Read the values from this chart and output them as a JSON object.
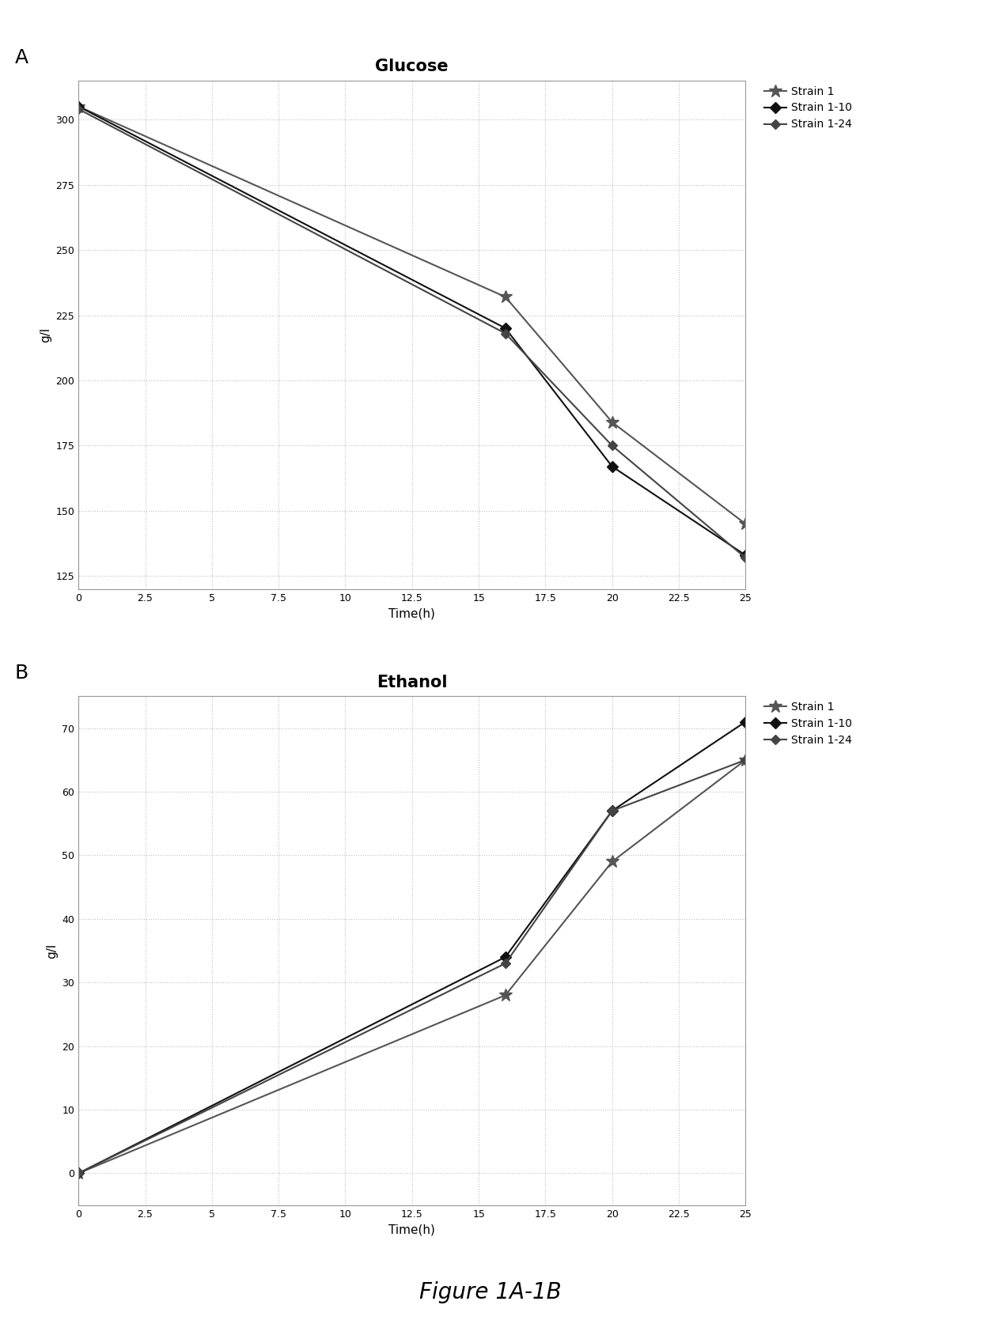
{
  "glucose": {
    "title": "Glucose",
    "xlabel": "Time(h)",
    "ylabel": "g/l",
    "xlim": [
      0,
      25
    ],
    "ylim": [
      120,
      315
    ],
    "yticks": [
      125,
      150,
      175,
      200,
      225,
      250,
      275,
      300
    ],
    "xticks": [
      0,
      2.5,
      5,
      7.5,
      10,
      12.5,
      15,
      17.5,
      20,
      22.5,
      25
    ],
    "series": [
      {
        "label": "Strain 1",
        "x": [
          0,
          16,
          20,
          25
        ],
        "y": [
          305,
          232,
          184,
          145
        ],
        "color": "#555555",
        "marker": "*",
        "markersize": 12,
        "linewidth": 1.5,
        "linestyle": "-"
      },
      {
        "label": "Strain 1-10",
        "x": [
          0,
          16,
          20,
          25
        ],
        "y": [
          305,
          220,
          167,
          133
        ],
        "color": "#111111",
        "marker": "D",
        "markersize": 7,
        "linewidth": 1.5,
        "linestyle": "-"
      },
      {
        "label": "Strain 1-24",
        "x": [
          0,
          16,
          20,
          25
        ],
        "y": [
          304,
          218,
          175,
          132
        ],
        "color": "#444444",
        "marker": "D",
        "markersize": 6,
        "linewidth": 1.5,
        "linestyle": "-"
      }
    ]
  },
  "ethanol": {
    "title": "Ethanol",
    "xlabel": "Time(h)",
    "ylabel": "g/l",
    "xlim": [
      0,
      25
    ],
    "ylim": [
      -5,
      75
    ],
    "yticks": [
      0,
      10,
      20,
      30,
      40,
      50,
      60,
      70
    ],
    "xticks": [
      0,
      2.5,
      5,
      7.5,
      10,
      12.5,
      15,
      17.5,
      20,
      22.5,
      25
    ],
    "series": [
      {
        "label": "Strain 1",
        "x": [
          0,
          16,
          20,
          25
        ],
        "y": [
          0,
          28,
          49,
          65
        ],
        "color": "#555555",
        "marker": "*",
        "markersize": 12,
        "linewidth": 1.5,
        "linestyle": "-"
      },
      {
        "label": "Strain 1-10",
        "x": [
          0,
          16,
          20,
          25
        ],
        "y": [
          0,
          34,
          57,
          71
        ],
        "color": "#111111",
        "marker": "D",
        "markersize": 7,
        "linewidth": 1.5,
        "linestyle": "-"
      },
      {
        "label": "Strain 1-24",
        "x": [
          0,
          16,
          20,
          25
        ],
        "y": [
          0,
          33,
          57,
          65
        ],
        "color": "#444444",
        "marker": "D",
        "markersize": 6,
        "linewidth": 1.5,
        "linestyle": "-"
      }
    ]
  },
  "figure_caption": "Figure 1A-1B",
  "panel_labels": [
    "A",
    "B"
  ],
  "background_color": "#ffffff",
  "grid_color": "#c0c0c0",
  "legend_fontsize": 10,
  "axis_fontsize": 11,
  "title_fontsize": 15,
  "tick_fontsize": 9,
  "panel_label_fontsize": 18,
  "caption_fontsize": 20
}
